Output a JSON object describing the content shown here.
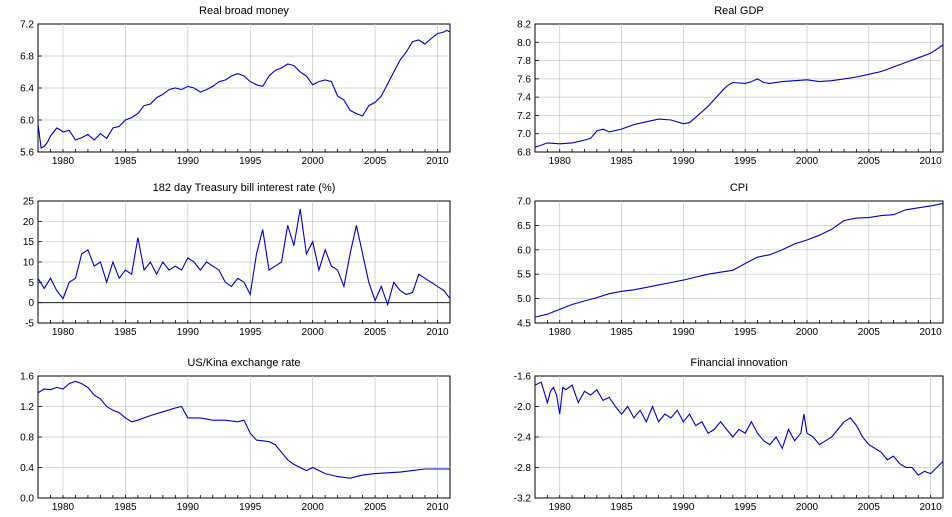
{
  "chart_data": [
    {
      "type": "line",
      "title": "Real broad money",
      "xlim": [
        1978,
        2011
      ],
      "ylim": [
        5.6,
        7.2
      ],
      "yticks": [
        "5.6",
        "6.0",
        "6.4",
        "6.8",
        "7.2"
      ],
      "xticks": [
        "1980",
        "1985",
        "1990",
        "1995",
        "2000",
        "2005",
        "2010"
      ],
      "grid": true,
      "series": [
        {
          "x": [
            1978.0,
            1978.25,
            1978.5,
            1978.75,
            1979.0,
            1979.25,
            1979.5,
            1979.75,
            1980.0,
            1980.5,
            1981.0,
            1981.5,
            1982.0,
            1982.5,
            1983.0,
            1983.5,
            1984.0,
            1984.5,
            1985.0,
            1985.5,
            1986.0,
            1986.5,
            1987.0,
            1987.5,
            1988.0,
            1988.5,
            1989.0,
            1989.5,
            1990.0,
            1990.5,
            1991.0,
            1991.5,
            1992.0,
            1992.5,
            1993.0,
            1993.5,
            1994.0,
            1994.5,
            1995.0,
            1995.5,
            1996.0,
            1996.5,
            1997.0,
            1997.5,
            1998.0,
            1998.5,
            1999.0,
            1999.5,
            2000.0,
            2000.5,
            2001.0,
            2001.5,
            2002.0,
            2002.5,
            2003.0,
            2003.5,
            2004.0,
            2004.5,
            2005.0,
            2005.5,
            2006.0,
            2006.5,
            2007.0,
            2007.5,
            2008.0,
            2008.5,
            2009.0,
            2009.5,
            2010.0,
            2010.5,
            2010.75,
            2011.0
          ],
          "y": [
            5.95,
            5.65,
            5.67,
            5.72,
            5.8,
            5.85,
            5.9,
            5.88,
            5.85,
            5.87,
            5.75,
            5.78,
            5.82,
            5.75,
            5.83,
            5.77,
            5.9,
            5.92,
            6.0,
            6.03,
            6.08,
            6.18,
            6.2,
            6.28,
            6.32,
            6.38,
            6.4,
            6.38,
            6.42,
            6.4,
            6.35,
            6.38,
            6.42,
            6.48,
            6.5,
            6.55,
            6.58,
            6.55,
            6.48,
            6.44,
            6.42,
            6.55,
            6.62,
            6.65,
            6.7,
            6.68,
            6.6,
            6.55,
            6.44,
            6.48,
            6.5,
            6.48,
            6.3,
            6.25,
            6.12,
            6.08,
            6.05,
            6.18,
            6.22,
            6.3,
            6.45,
            6.6,
            6.75,
            6.85,
            6.98,
            7.0,
            6.95,
            7.02,
            7.08,
            7.1,
            7.12,
            7.1
          ]
        }
      ]
    },
    {
      "type": "line",
      "title": "Real GDP",
      "xlim": [
        1978,
        2011
      ],
      "ylim": [
        6.8,
        8.2
      ],
      "yticks": [
        "6.8",
        "7.0",
        "7.2",
        "7.4",
        "7.6",
        "7.8",
        "8.0",
        "8.2"
      ],
      "xticks": [
        "1980",
        "1985",
        "1990",
        "1995",
        "2000",
        "2005",
        "2010"
      ],
      "grid": true,
      "series": [
        {
          "x": [
            1978.0,
            1979.0,
            1980.0,
            1981.0,
            1982.0,
            1982.5,
            1983.0,
            1983.5,
            1984.0,
            1985.0,
            1986.0,
            1987.0,
            1988.0,
            1989.0,
            1990.0,
            1990.5,
            1991.0,
            1992.0,
            1993.0,
            1993.5,
            1994.0,
            1995.0,
            1995.5,
            1996.0,
            1996.5,
            1997.0,
            1998.0,
            1999.0,
            2000.0,
            2001.0,
            2002.0,
            2003.0,
            2004.0,
            2005.0,
            2006.0,
            2007.0,
            2008.0,
            2009.0,
            2010.0,
            2011.0
          ],
          "y": [
            6.85,
            6.9,
            6.89,
            6.9,
            6.93,
            6.95,
            7.03,
            7.05,
            7.02,
            7.05,
            7.1,
            7.13,
            7.16,
            7.15,
            7.11,
            7.12,
            7.18,
            7.3,
            7.45,
            7.52,
            7.56,
            7.55,
            7.57,
            7.6,
            7.56,
            7.55,
            7.57,
            7.58,
            7.59,
            7.57,
            7.58,
            7.6,
            7.62,
            7.65,
            7.68,
            7.73,
            7.78,
            7.83,
            7.88,
            7.97
          ]
        }
      ]
    },
    {
      "type": "line",
      "title": "182 day Treasury bill interest rate (%)",
      "xlim": [
        1978,
        2011
      ],
      "ylim": [
        -5,
        25
      ],
      "yticks": [
        "-5",
        "0",
        "5",
        "10",
        "15",
        "20",
        "25"
      ],
      "xticks": [
        "1980",
        "1985",
        "1990",
        "1995",
        "2000",
        "2005",
        "2010"
      ],
      "grid": true,
      "zero_line": true,
      "series": [
        {
          "x": [
            1978.0,
            1978.5,
            1979.0,
            1979.5,
            1980.0,
            1980.5,
            1981.0,
            1981.5,
            1982.0,
            1982.5,
            1983.0,
            1983.5,
            1984.0,
            1984.5,
            1985.0,
            1985.5,
            1986.0,
            1986.5,
            1987.0,
            1987.5,
            1988.0,
            1988.5,
            1989.0,
            1989.5,
            1990.0,
            1990.5,
            1991.0,
            1991.5,
            1992.0,
            1992.5,
            1993.0,
            1993.5,
            1994.0,
            1994.5,
            1995.0,
            1995.5,
            1996.0,
            1996.5,
            1997.0,
            1997.5,
            1998.0,
            1998.5,
            1999.0,
            1999.5,
            2000.0,
            2000.5,
            2001.0,
            2001.5,
            2002.0,
            2002.5,
            2003.0,
            2003.5,
            2004.0,
            2004.5,
            2005.0,
            2005.5,
            2006.0,
            2006.5,
            2007.0,
            2007.5,
            2008.0,
            2008.5,
            2009.0,
            2009.5,
            2010.0,
            2010.5,
            2011.0
          ],
          "y": [
            6,
            3.5,
            6,
            3,
            1,
            5,
            6,
            12,
            13,
            9,
            10,
            5,
            10,
            6,
            8,
            7,
            16,
            8,
            10,
            7,
            10,
            8,
            9,
            8,
            11,
            10,
            8,
            10,
            9,
            8,
            5,
            4,
            6,
            5,
            2,
            12,
            18,
            8,
            9,
            10,
            19,
            14,
            23,
            12,
            15,
            8,
            13,
            9,
            8,
            4,
            12,
            19,
            12,
            5,
            0.5,
            4,
            -0.5,
            5,
            3,
            2,
            2.5,
            7,
            6,
            5,
            4,
            3,
            1
          ]
        }
      ]
    },
    {
      "type": "line",
      "title": "CPI",
      "xlim": [
        1978,
        2011
      ],
      "ylim": [
        4.5,
        7.0
      ],
      "yticks": [
        "4.5",
        "5.0",
        "5.5",
        "6.0",
        "6.5",
        "7.0"
      ],
      "xticks": [
        "1980",
        "1985",
        "1990",
        "1995",
        "2000",
        "2005",
        "2010"
      ],
      "grid": true,
      "series": [
        {
          "x": [
            1978.0,
            1979.0,
            1980.0,
            1981.0,
            1982.0,
            1983.0,
            1984.0,
            1985.0,
            1986.0,
            1987.0,
            1988.0,
            1989.0,
            1990.0,
            1991.0,
            1992.0,
            1993.0,
            1994.0,
            1995.0,
            1996.0,
            1997.0,
            1998.0,
            1999.0,
            2000.0,
            2001.0,
            2002.0,
            2003.0,
            2004.0,
            2005.0,
            2006.0,
            2007.0,
            2008.0,
            2009.0,
            2010.0,
            2011.0
          ],
          "y": [
            4.62,
            4.68,
            4.78,
            4.88,
            4.95,
            5.02,
            5.1,
            5.15,
            5.18,
            5.23,
            5.28,
            5.33,
            5.38,
            5.44,
            5.5,
            5.54,
            5.58,
            5.72,
            5.85,
            5.9,
            6.0,
            6.12,
            6.2,
            6.3,
            6.42,
            6.6,
            6.65,
            6.66,
            6.7,
            6.72,
            6.82,
            6.86,
            6.9,
            6.95
          ]
        }
      ]
    },
    {
      "type": "line",
      "title": "US/Kina exchange rate",
      "xlim": [
        1978,
        2011
      ],
      "ylim": [
        0.0,
        1.6
      ],
      "yticks": [
        "0.0",
        "0.4",
        "0.8",
        "1.2",
        "1.6"
      ],
      "xticks": [
        "1980",
        "1985",
        "1990",
        "1995",
        "2000",
        "2005",
        "2010"
      ],
      "grid": true,
      "series": [
        {
          "x": [
            1978.0,
            1978.5,
            1979.0,
            1979.5,
            1980.0,
            1980.5,
            1981.0,
            1981.5,
            1982.0,
            1982.5,
            1983.0,
            1983.5,
            1984.0,
            1984.5,
            1985.0,
            1985.5,
            1986.0,
            1986.5,
            1987.0,
            1988.0,
            1989.0,
            1989.5,
            1990.0,
            1991.0,
            1992.0,
            1993.0,
            1994.0,
            1994.5,
            1995.0,
            1995.5,
            1996.0,
            1996.5,
            1997.0,
            1997.5,
            1998.0,
            1998.5,
            1999.0,
            1999.5,
            2000.0,
            2001.0,
            2002.0,
            2003.0,
            2004.0,
            2005.0,
            2006.0,
            2007.0,
            2008.0,
            2009.0,
            2010.0,
            2011.0
          ],
          "y": [
            1.38,
            1.43,
            1.42,
            1.45,
            1.43,
            1.5,
            1.53,
            1.5,
            1.45,
            1.35,
            1.3,
            1.2,
            1.15,
            1.12,
            1.05,
            1.0,
            1.02,
            1.05,
            1.08,
            1.13,
            1.18,
            1.2,
            1.05,
            1.05,
            1.02,
            1.02,
            1.0,
            1.02,
            0.85,
            0.76,
            0.75,
            0.74,
            0.7,
            0.6,
            0.5,
            0.44,
            0.4,
            0.36,
            0.4,
            0.32,
            0.28,
            0.26,
            0.3,
            0.32,
            0.33,
            0.34,
            0.36,
            0.38,
            0.38,
            0.38
          ]
        }
      ]
    },
    {
      "type": "line",
      "title": "Financial innovation",
      "xlim": [
        1978,
        2011
      ],
      "ylim": [
        -3.2,
        -1.6
      ],
      "yticks": [
        "-3.2",
        "-2.8",
        "-2.4",
        "-2.0",
        "-1.6"
      ],
      "xticks": [
        "1980",
        "1985",
        "1990",
        "1995",
        "2000",
        "2005",
        "2010"
      ],
      "grid": true,
      "series": [
        {
          "x": [
            1978.0,
            1978.5,
            1979.0,
            1979.25,
            1979.5,
            1979.75,
            1980.0,
            1980.25,
            1980.5,
            1981.0,
            1981.5,
            1982.0,
            1982.5,
            1983.0,
            1983.5,
            1984.0,
            1984.5,
            1985.0,
            1985.5,
            1986.0,
            1986.5,
            1987.0,
            1987.5,
            1988.0,
            1988.5,
            1989.0,
            1989.5,
            1990.0,
            1990.5,
            1991.0,
            1991.5,
            1992.0,
            1992.5,
            1993.0,
            1993.5,
            1994.0,
            1994.5,
            1995.0,
            1995.5,
            1996.0,
            1996.5,
            1997.0,
            1997.5,
            1998.0,
            1998.5,
            1999.0,
            1999.5,
            1999.75,
            2000.0,
            2000.5,
            2001.0,
            2001.5,
            2002.0,
            2002.5,
            2003.0,
            2003.5,
            2004.0,
            2004.5,
            2005.0,
            2005.5,
            2006.0,
            2006.5,
            2007.0,
            2007.5,
            2008.0,
            2008.5,
            2009.0,
            2009.5,
            2010.0,
            2010.5,
            2011.0
          ],
          "y": [
            -1.72,
            -1.68,
            -1.95,
            -1.8,
            -1.75,
            -1.85,
            -2.1,
            -1.75,
            -1.78,
            -1.72,
            -1.95,
            -1.8,
            -1.85,
            -1.78,
            -1.92,
            -1.88,
            -2.0,
            -2.1,
            -2.0,
            -2.15,
            -2.05,
            -2.2,
            -2.0,
            -2.2,
            -2.1,
            -2.15,
            -2.05,
            -2.2,
            -2.1,
            -2.25,
            -2.2,
            -2.35,
            -2.3,
            -2.2,
            -2.3,
            -2.4,
            -2.3,
            -2.35,
            -2.2,
            -2.35,
            -2.45,
            -2.5,
            -2.4,
            -2.55,
            -2.3,
            -2.45,
            -2.35,
            -2.1,
            -2.35,
            -2.4,
            -2.5,
            -2.45,
            -2.4,
            -2.3,
            -2.2,
            -2.15,
            -2.25,
            -2.4,
            -2.5,
            -2.55,
            -2.6,
            -2.7,
            -2.65,
            -2.75,
            -2.8,
            -2.8,
            -2.9,
            -2.85,
            -2.88,
            -2.8,
            -2.72
          ]
        }
      ]
    }
  ]
}
